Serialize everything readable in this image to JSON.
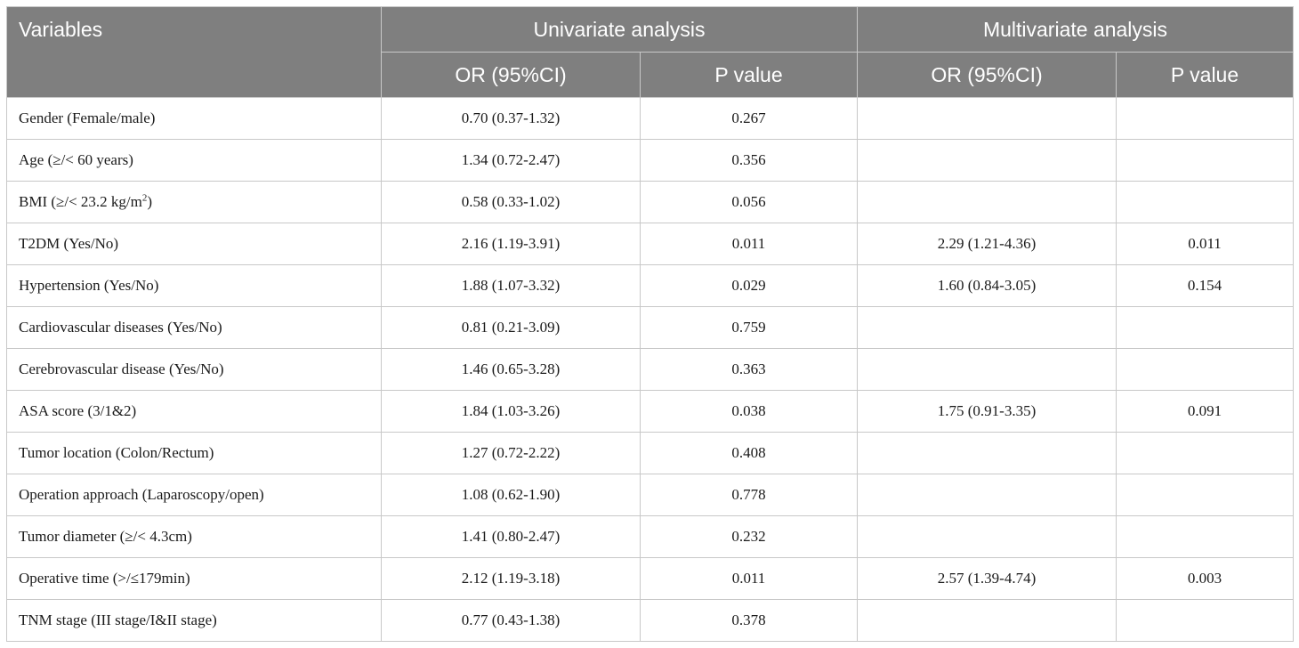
{
  "headers": {
    "variables": "Variables",
    "univariate": "Univariate analysis",
    "multivariate": "Multivariate analysis",
    "or_ci": "OR (95%CI)",
    "p_value": "P value"
  },
  "rows": [
    {
      "variable": "Gender (Female/male)",
      "uni_or": "0.70 (0.37-1.32)",
      "uni_p": "0.267",
      "multi_or": "",
      "multi_p": ""
    },
    {
      "variable": "Age (≥/< 60 years)",
      "uni_or": "1.34 (0.72-2.47)",
      "uni_p": "0.356",
      "multi_or": "",
      "multi_p": ""
    },
    {
      "variable": "BMI (≥/< 23.2 kg/m",
      "variable_sup": "2",
      "variable_suffix": ")",
      "uni_or": "0.58 (0.33-1.02)",
      "uni_p": "0.056",
      "multi_or": "",
      "multi_p": ""
    },
    {
      "variable": "T2DM (Yes/No)",
      "uni_or": "2.16 (1.19-3.91)",
      "uni_p": "0.011",
      "multi_or": "2.29 (1.21-4.36)",
      "multi_p": "0.011"
    },
    {
      "variable": "Hypertension (Yes/No)",
      "uni_or": "1.88 (1.07-3.32)",
      "uni_p": "0.029",
      "multi_or": "1.60 (0.84-3.05)",
      "multi_p": "0.154"
    },
    {
      "variable": "Cardiovascular diseases (Yes/No)",
      "uni_or": "0.81 (0.21-3.09)",
      "uni_p": "0.759",
      "multi_or": "",
      "multi_p": ""
    },
    {
      "variable": "Cerebrovascular disease (Yes/No)",
      "uni_or": "1.46 (0.65-3.28)",
      "uni_p": "0.363",
      "multi_or": "",
      "multi_p": ""
    },
    {
      "variable": "ASA score (3/1&2)",
      "uni_or": "1.84 (1.03-3.26)",
      "uni_p": "0.038",
      "multi_or": "1.75 (0.91-3.35)",
      "multi_p": "0.091"
    },
    {
      "variable": "Tumor location (Colon/Rectum)",
      "uni_or": "1.27 (0.72-2.22)",
      "uni_p": "0.408",
      "multi_or": "",
      "multi_p": ""
    },
    {
      "variable": "Operation approach (Laparoscopy/open)",
      "uni_or": "1.08 (0.62-1.90)",
      "uni_p": "0.778",
      "multi_or": "",
      "multi_p": ""
    },
    {
      "variable": "Tumor diameter (≥/< 4.3cm)",
      "uni_or": "1.41 (0.80-2.47)",
      "uni_p": "0.232",
      "multi_or": "",
      "multi_p": ""
    },
    {
      "variable": "Operative time (>/≤179min)",
      "uni_or": "2.12 (1.19-3.18)",
      "uni_p": "0.011",
      "multi_or": "2.57 (1.39-4.74)",
      "multi_p": "0.003"
    },
    {
      "variable": "TNM stage (III stage/I&II stage)",
      "uni_or": "0.77 (0.43-1.38)",
      "uni_p": "0.378",
      "multi_or": "",
      "multi_p": ""
    }
  ]
}
